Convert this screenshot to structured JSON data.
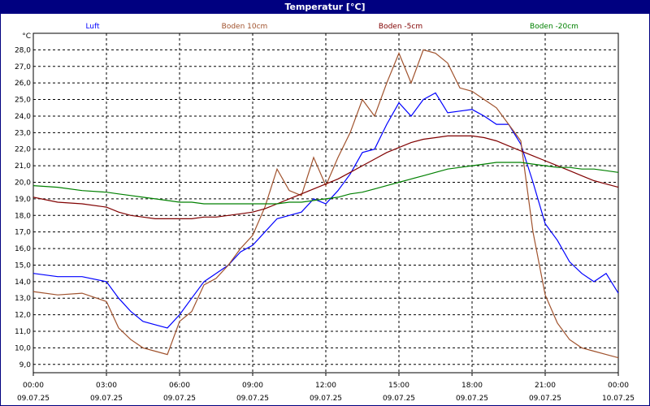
{
  "window": {
    "title": "Temperatur [°C]"
  },
  "chart_data": {
    "type": "line",
    "title": "Temperatur [°C]",
    "ylabel": "°C",
    "xlabel": "",
    "ylim": [
      8.5,
      29.0
    ],
    "y_ticks": [
      9.0,
      10.0,
      11.0,
      12.0,
      13.0,
      14.0,
      15.0,
      16.0,
      17.0,
      18.0,
      19.0,
      20.0,
      21.0,
      22.0,
      23.0,
      24.0,
      25.0,
      26.0,
      27.0,
      28.0
    ],
    "y_tick_labels": [
      "9,0",
      "10,0",
      "11,0",
      "12,0",
      "13,0",
      "14,0",
      "15,0",
      "16,0",
      "17,0",
      "18,0",
      "19,0",
      "20,0",
      "21,0",
      "22,0",
      "23,0",
      "24,0",
      "25,0",
      "26,0",
      "27,0",
      "28,0"
    ],
    "x_ticks": [
      {
        "time": "00:00",
        "date": "09.07.25"
      },
      {
        "time": "03:00",
        "date": "09.07.25"
      },
      {
        "time": "06:00",
        "date": "09.07.25"
      },
      {
        "time": "09:00",
        "date": "09.07.25"
      },
      {
        "time": "12:00",
        "date": "09.07.25"
      },
      {
        "time": "15:00",
        "date": "09.07.25"
      },
      {
        "time": "18:00",
        "date": "09.07.25"
      },
      {
        "time": "21:00",
        "date": "09.07.25"
      },
      {
        "time": "00:00",
        "date": "10.07.25"
      }
    ],
    "x_hours": [
      0,
      1,
      2,
      3,
      3.5,
      4,
      4.5,
      5,
      5.5,
      6,
      6.5,
      7,
      7.5,
      8,
      8.5,
      9,
      9.5,
      10,
      10.5,
      11,
      11.5,
      12,
      12.5,
      13,
      13.5,
      14,
      14.5,
      15,
      15.5,
      16,
      16.5,
      17,
      17.5,
      18,
      18.5,
      19,
      19.5,
      20,
      20.5,
      21,
      21.5,
      22,
      22.5,
      23,
      23.5,
      24
    ],
    "grid": true,
    "legend_position": "top",
    "series": [
      {
        "name": "Luft",
        "color": "#0000ff",
        "values": [
          14.5,
          14.3,
          14.3,
          14.0,
          13.0,
          12.2,
          11.6,
          11.4,
          11.2,
          12.0,
          13.0,
          14.0,
          14.5,
          15.0,
          15.8,
          16.2,
          17.0,
          17.8,
          18.0,
          18.2,
          19.0,
          18.7,
          19.5,
          20.5,
          21.8,
          22.0,
          23.5,
          24.8,
          24.0,
          25.0,
          25.4,
          24.2,
          24.3,
          24.4,
          24.0,
          23.5,
          23.5,
          22.3,
          20.0,
          17.5,
          16.5,
          15.2,
          14.5,
          14.0,
          14.5,
          13.3
        ]
      },
      {
        "name": "Boden 10cm",
        "color": "#a0522d",
        "values": [
          13.4,
          13.2,
          13.3,
          12.8,
          11.2,
          10.5,
          10.0,
          9.8,
          9.6,
          11.6,
          12.2,
          13.8,
          14.2,
          15.0,
          16.0,
          16.8,
          18.5,
          20.8,
          19.5,
          19.2,
          21.5,
          19.8,
          21.5,
          23.0,
          25.0,
          24.0,
          26.0,
          27.8,
          26.0,
          28.0,
          27.8,
          27.2,
          25.7,
          25.5,
          25.0,
          24.5,
          23.5,
          22.5,
          17.0,
          13.2,
          11.5,
          10.5,
          10.0,
          9.8,
          9.6,
          9.4
        ]
      },
      {
        "name": "Boden -5cm",
        "color": "#800000",
        "values": [
          19.1,
          18.8,
          18.7,
          18.5,
          18.2,
          18.0,
          17.9,
          17.8,
          17.8,
          17.8,
          17.8,
          17.9,
          17.9,
          18.0,
          18.1,
          18.2,
          18.4,
          18.7,
          19.0,
          19.3,
          19.6,
          19.9,
          20.2,
          20.6,
          21.0,
          21.4,
          21.8,
          22.1,
          22.4,
          22.6,
          22.7,
          22.8,
          22.8,
          22.8,
          22.7,
          22.5,
          22.2,
          21.9,
          21.6,
          21.3,
          21.0,
          20.7,
          20.4,
          20.1,
          19.9,
          19.7
        ]
      },
      {
        "name": "Boden -20cm",
        "color": "#008000",
        "values": [
          19.8,
          19.7,
          19.5,
          19.4,
          19.3,
          19.2,
          19.1,
          19.0,
          18.9,
          18.8,
          18.8,
          18.7,
          18.7,
          18.7,
          18.7,
          18.7,
          18.7,
          18.7,
          18.8,
          18.8,
          18.9,
          19.0,
          19.1,
          19.3,
          19.4,
          19.6,
          19.8,
          20.0,
          20.2,
          20.4,
          20.6,
          20.8,
          20.9,
          21.0,
          21.1,
          21.2,
          21.2,
          21.2,
          21.1,
          21.0,
          20.9,
          20.9,
          20.8,
          20.8,
          20.7,
          20.6
        ]
      }
    ]
  }
}
